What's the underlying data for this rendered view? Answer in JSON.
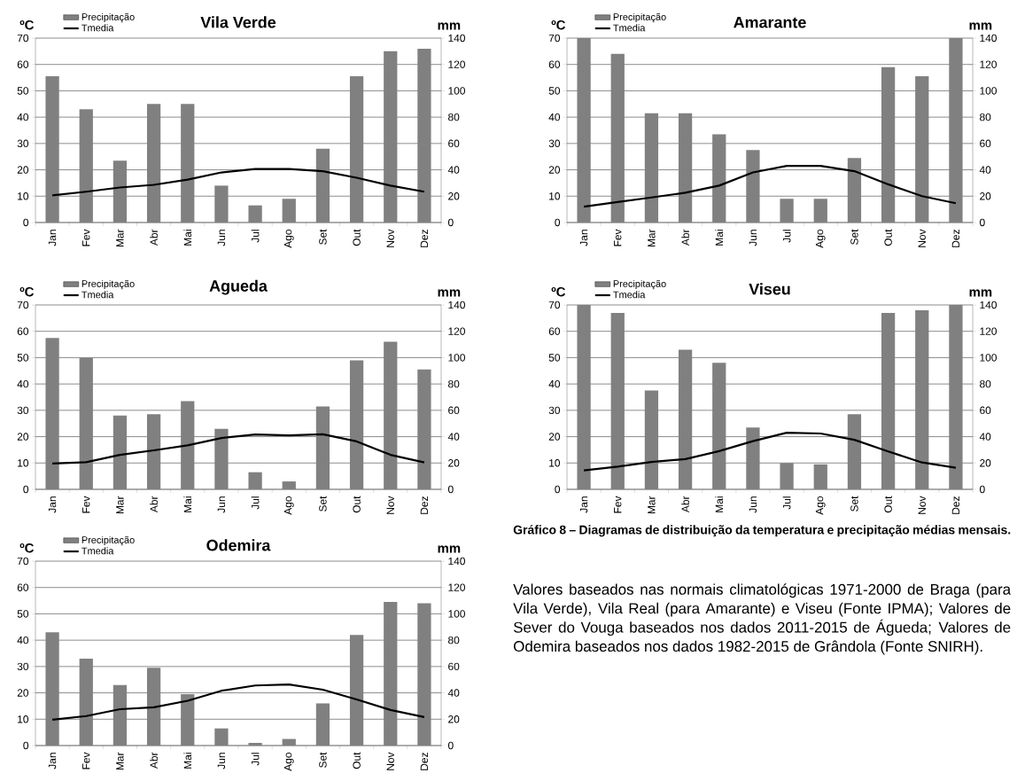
{
  "chart_data": [
    {
      "type": "bar",
      "title": "Vila Verde",
      "ylabel": "ºC",
      "y2label": "mm",
      "categories": [
        "Jan",
        "Fev",
        "Mar",
        "Abr",
        "Mai",
        "Jun",
        "Jul",
        "Ago",
        "Set",
        "Out",
        "Nov",
        "Dez"
      ],
      "series": [
        {
          "name": "Precipitação",
          "type": "bar",
          "axis": "y2",
          "color": "#808080",
          "values": [
            111,
            86,
            47,
            90,
            90,
            28,
            13,
            18,
            56,
            111,
            130,
            132
          ]
        },
        {
          "name": "Tmedia",
          "type": "line",
          "color": "#000000",
          "values": [
            10.3,
            11.7,
            13.3,
            14.3,
            16.3,
            19,
            20.3,
            20.3,
            19.5,
            17,
            14,
            11.7
          ]
        }
      ],
      "ylim": [
        0,
        70
      ],
      "yticks": [
        0,
        10,
        20,
        30,
        40,
        50,
        60,
        70
      ],
      "y2lim": [
        0,
        140
      ],
      "y2ticks": [
        0,
        20,
        40,
        60,
        80,
        100,
        120,
        140
      ],
      "grid": "y",
      "legend": "top left",
      "marker": "none"
    },
    {
      "type": "bar",
      "title": "Amarante",
      "ylabel": "ºC",
      "y2label": "mm",
      "categories": [
        "Jan",
        "Fev",
        "Mar",
        "Abr",
        "Mai",
        "Jun",
        "Jul",
        "Ago",
        "Set",
        "Out",
        "Nov",
        "Dez"
      ],
      "series": [
        {
          "name": "Precipitação",
          "type": "bar",
          "axis": "y2",
          "color": "#808080",
          "values": [
            140,
            128,
            83,
            83,
            67,
            55,
            18,
            18,
            49,
            118,
            111,
            140
          ]
        },
        {
          "name": "Tmedia",
          "type": "line",
          "color": "#000000",
          "values": [
            6,
            7.8,
            9.5,
            11.3,
            14,
            19,
            21.5,
            21.5,
            19.5,
            14.5,
            10,
            7.3
          ]
        }
      ],
      "ylim": [
        0,
        70
      ],
      "yticks": [
        0,
        10,
        20,
        30,
        40,
        50,
        60,
        70
      ],
      "y2lim": [
        0,
        140
      ],
      "y2ticks": [
        0,
        20,
        40,
        60,
        80,
        100,
        120,
        140
      ],
      "grid": "y",
      "legend": "top left",
      "marker": "none"
    },
    {
      "type": "bar",
      "title": "Agueda",
      "ylabel": "ºC",
      "y2label": "mm",
      "categories": [
        "Jan",
        "Fev",
        "Mar",
        "Abr",
        "Mai",
        "Jun",
        "Jul",
        "Ago",
        "Set",
        "Out",
        "Nov",
        "Dez"
      ],
      "series": [
        {
          "name": "Precipitação",
          "type": "bar",
          "axis": "y2",
          "color": "#808080",
          "values": [
            115,
            100,
            56,
            57,
            67,
            46,
            13,
            6,
            63,
            98,
            112,
            91
          ]
        },
        {
          "name": "Tmedia",
          "type": "line",
          "color": "#000000",
          "values": [
            9.8,
            10.3,
            13.1,
            14.8,
            16.7,
            19.5,
            20.8,
            20.5,
            20.9,
            18.2,
            13.1,
            10.2
          ]
        }
      ],
      "ylim": [
        0,
        70
      ],
      "yticks": [
        0,
        10,
        20,
        30,
        40,
        50,
        60,
        70
      ],
      "y2lim": [
        0,
        140
      ],
      "y2ticks": [
        0,
        20,
        40,
        60,
        80,
        100,
        120,
        140
      ],
      "grid": "y",
      "legend": "top left",
      "marker": "none"
    },
    {
      "type": "bar",
      "title": "Viseu",
      "ylabel": "ºC",
      "y2label": "mm",
      "categories": [
        "Jan",
        "Fev",
        "Mar",
        "Abr",
        "Mai",
        "Jun",
        "Jul",
        "Ago",
        "Set",
        "Out",
        "Nov",
        "Dez"
      ],
      "series": [
        {
          "name": "Precipitação",
          "type": "bar",
          "axis": "y2",
          "color": "#808080",
          "values": [
            140,
            134,
            75,
            106,
            96,
            47,
            20,
            19,
            57,
            134,
            136,
            140
          ]
        },
        {
          "name": "Tmedia",
          "type": "line",
          "color": "#000000",
          "values": [
            7.2,
            8.6,
            10.4,
            11.5,
            14.5,
            18.3,
            21.5,
            21.2,
            18.8,
            14.4,
            10.2,
            8.2
          ]
        }
      ],
      "ylim": [
        0,
        70
      ],
      "yticks": [
        0,
        10,
        20,
        30,
        40,
        50,
        60,
        70
      ],
      "y2lim": [
        0,
        140
      ],
      "y2ticks": [
        0,
        20,
        40,
        60,
        80,
        100,
        120,
        140
      ],
      "grid": "y",
      "legend": "top left",
      "marker": "none"
    },
    {
      "type": "bar",
      "title": "Odemira",
      "ylabel": "ºC",
      "y2label": "mm",
      "categories": [
        "Jan",
        "Fev",
        "Mar",
        "Abr",
        "Mai",
        "Jun",
        "Jul",
        "Ago",
        "Set",
        "Out",
        "Nov",
        "Dez"
      ],
      "series": [
        {
          "name": "Precipitação",
          "type": "bar",
          "axis": "y2",
          "color": "#808080",
          "values": [
            86,
            66,
            46,
            59,
            39,
            13,
            2,
            5,
            32,
            84,
            109,
            108
          ]
        },
        {
          "name": "Tmedia",
          "type": "line",
          "color": "#000000",
          "values": [
            9.8,
            11.2,
            13.8,
            14.5,
            17,
            20.8,
            22.8,
            23.2,
            21.2,
            17.5,
            13.5,
            10.8
          ]
        }
      ],
      "ylim": [
        0,
        70
      ],
      "yticks": [
        0,
        10,
        20,
        30,
        40,
        50,
        60,
        70
      ],
      "y2lim": [
        0,
        140
      ],
      "y2ticks": [
        0,
        20,
        40,
        60,
        80,
        100,
        120,
        140
      ],
      "grid": "y",
      "legend": "top left",
      "marker": "none"
    },
    {
      "type": "other",
      "title": "Gráfico 8 – Diagramas de distribuição da temperatura e precipitação médias mensais.",
      "annotations": [
        "Valores baseados nas normais climatológicas 1971-2000 de Braga (para Vila Verde), Vila Real (para Amarante) e Viseu (Fonte IPMA); Valores de Sever do Vouga baseados nos dados 2011-2015 de Águeda; Valores de Odemira baseados nos dados 1982-2015 de Grândola (Fonte SNIRH)."
      ]
    }
  ]
}
